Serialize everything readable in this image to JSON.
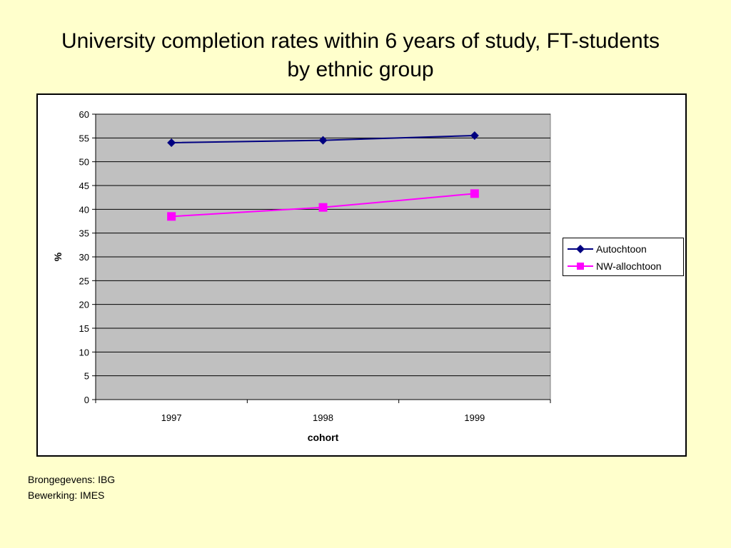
{
  "title": {
    "line1": "University completion rates within 6 years of study, FT-students",
    "line2": "by ethnic group"
  },
  "chart_data": {
    "type": "line",
    "x": [
      "1997",
      "1998",
      "1999"
    ],
    "series": [
      {
        "name": "Autochtoon",
        "values": [
          54,
          54.5,
          55.5
        ],
        "color": "#000080",
        "marker": "diamond"
      },
      {
        "name": "NW-allochtoon",
        "values": [
          38.5,
          40.4,
          43.3
        ],
        "color": "#ff00ff",
        "marker": "square"
      }
    ],
    "xlabel": "cohort",
    "ylabel": "%",
    "ylim": [
      0,
      60
    ],
    "yticks": [
      0,
      5,
      10,
      15,
      20,
      25,
      30,
      35,
      40,
      45,
      50,
      55,
      60
    ],
    "grid": true,
    "plot_background": "#c0c0c0",
    "legend_position": "right"
  },
  "notes": {
    "line1": "Brongegevens: IBG",
    "line2": "Bewerking: IMES"
  }
}
